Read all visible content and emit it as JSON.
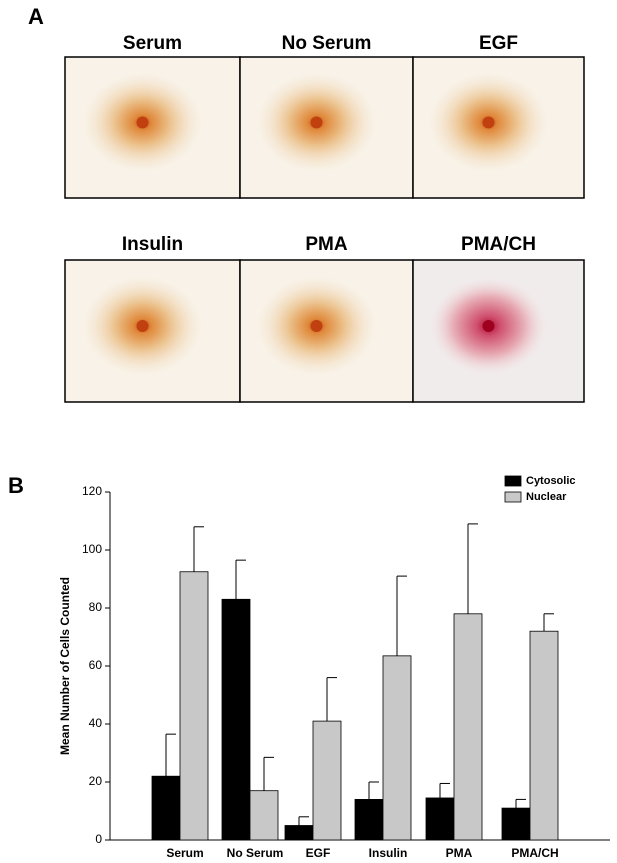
{
  "panel_labels": [
    "A",
    "B"
  ],
  "images": [
    {
      "label": "Serum"
    },
    {
      "label": "No Serum"
    },
    {
      "label": "EGF"
    },
    {
      "label": "Insulin"
    },
    {
      "label": "PMA"
    },
    {
      "label": "PMA/CH"
    }
  ],
  "chart_data": {
    "type": "bar",
    "ylabel": "Mean Number of Cells Counted",
    "categories": [
      "Serum",
      "No Serum",
      "EGF",
      "Insulin",
      "PMA",
      "PMA/CH"
    ],
    "series": [
      {
        "name": "Cytosolic",
        "color": "#000000",
        "values": [
          22,
          83,
          5,
          14,
          14.5,
          11
        ],
        "errors": [
          14.5,
          13.5,
          3,
          6,
          5,
          3
        ]
      },
      {
        "name": "Nuclear",
        "color": "#c8c8c8",
        "values": [
          92.5,
          17,
          41,
          63.5,
          78,
          72
        ],
        "errors": [
          15.5,
          11.5,
          15,
          27.5,
          31,
          6
        ]
      }
    ],
    "ylim": [
      0,
      120
    ],
    "yticks": [
      0,
      20,
      40,
      60,
      80,
      100,
      120
    ],
    "legend": "upper right"
  }
}
